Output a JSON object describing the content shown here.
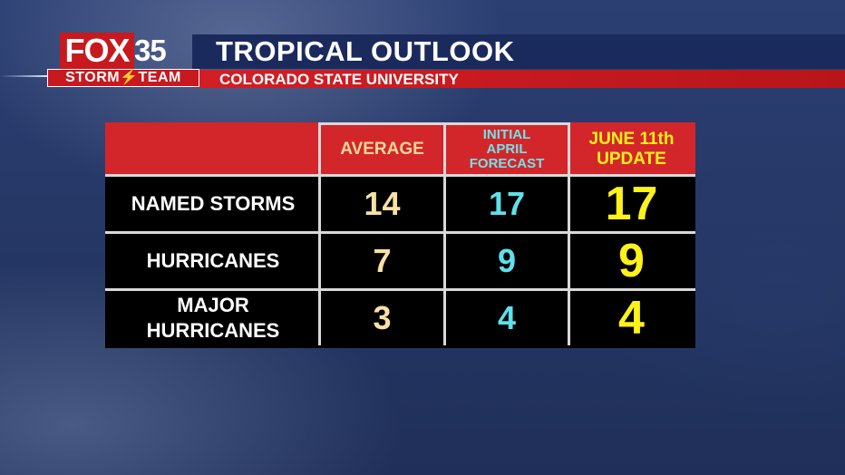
{
  "branding": {
    "logo_fox": "FOX",
    "logo_number": "35",
    "logo_team": "STORM⚡TEAM"
  },
  "header": {
    "title": "TROPICAL OUTLOOK",
    "subtitle": "COLORADO STATE UNIVERSITY"
  },
  "table": {
    "columns": [
      {
        "label": ""
      },
      {
        "label": "AVERAGE"
      },
      {
        "label_lines": [
          "INITIAL",
          "APRIL",
          "FORECAST"
        ]
      },
      {
        "label_lines": [
          "JUNE 11th",
          "UPDATE"
        ]
      }
    ],
    "rows": [
      {
        "label_lines": [
          "NAMED STORMS"
        ],
        "average": "14",
        "initial": "17",
        "update": "17"
      },
      {
        "label_lines": [
          "HURRICANES"
        ],
        "average": "7",
        "initial": "9",
        "update": "9"
      },
      {
        "label_lines": [
          "MAJOR",
          "HURRICANES"
        ],
        "average": "3",
        "initial": "4",
        "update": "4"
      }
    ]
  },
  "colors": {
    "header_red": "#d3262a",
    "title_bar_navy": "#1b2a5c",
    "average_color": "#f9e0a6",
    "initial_color": "#5fe0ea",
    "update_color": "#fff11a"
  }
}
